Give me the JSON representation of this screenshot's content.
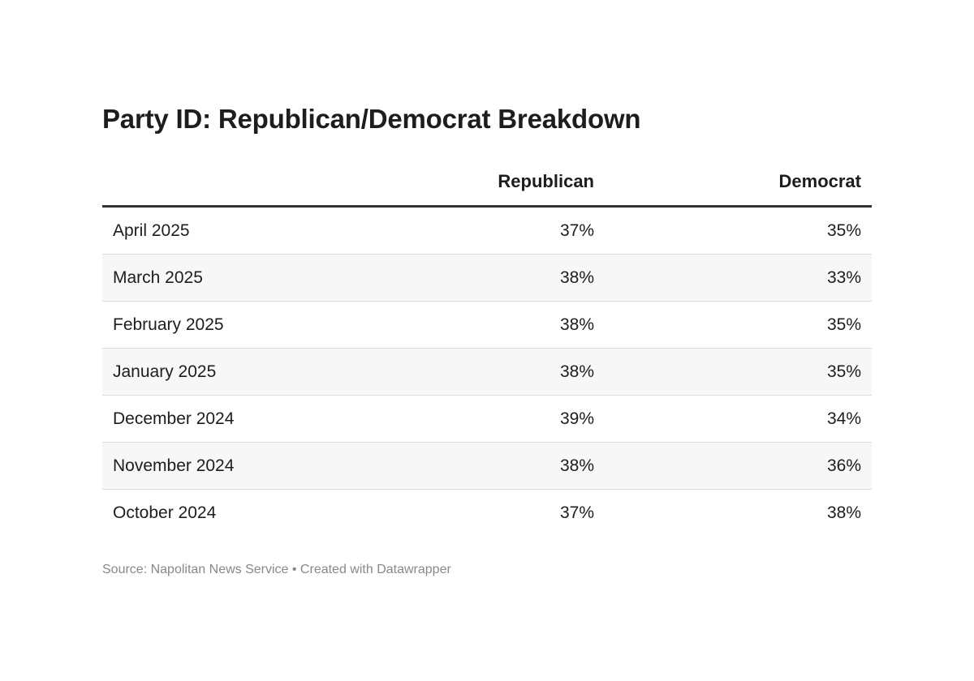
{
  "chart_data": {
    "type": "table",
    "title": "Party ID: Republican/Democrat Breakdown",
    "columns": [
      "",
      "Republican",
      "Democrat"
    ],
    "rows": [
      {
        "label": "April 2025",
        "republican": "37%",
        "democrat": "35%"
      },
      {
        "label": "March 2025",
        "republican": "38%",
        "democrat": "33%"
      },
      {
        "label": "February 2025",
        "republican": "38%",
        "democrat": "35%"
      },
      {
        "label": "January 2025",
        "republican": "38%",
        "democrat": "35%"
      },
      {
        "label": "December 2024",
        "republican": "39%",
        "democrat": "34%"
      },
      {
        "label": "November 2024",
        "republican": "38%",
        "democrat": "36%"
      },
      {
        "label": "October 2024",
        "republican": "37%",
        "democrat": "38%"
      }
    ],
    "source": "Source: Napolitan News Service • Created with Datawrapper"
  }
}
